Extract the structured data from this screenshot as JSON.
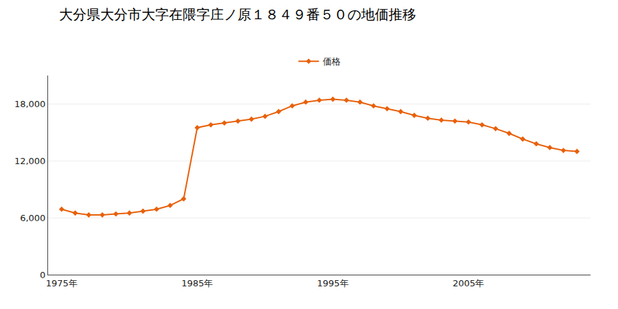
{
  "chart_data": {
    "type": "line",
    "title": "大分県大分市大字在隈字庄ノ原１８４９番５０の地価推移",
    "x": [
      1975,
      1976,
      1977,
      1978,
      1979,
      1980,
      1981,
      1982,
      1983,
      1984,
      1985,
      1986,
      1987,
      1988,
      1989,
      1990,
      1991,
      1992,
      1993,
      1994,
      1995,
      1996,
      1997,
      1998,
      1999,
      2000,
      2001,
      2002,
      2003,
      2004,
      2005,
      2006,
      2007,
      2008,
      2009,
      2010,
      2011,
      2012,
      2013
    ],
    "series": [
      {
        "name": "価格",
        "color": "#E8600A",
        "marker": "diamond",
        "values": [
          6900,
          6500,
          6300,
          6300,
          6400,
          6500,
          6700,
          6900,
          7300,
          8000,
          15500,
          15800,
          16000,
          16200,
          16400,
          16700,
          17200,
          17800,
          18200,
          18400,
          18500,
          18400,
          18200,
          17800,
          17500,
          17200,
          16800,
          16500,
          16300,
          16200,
          16100,
          15800,
          15400,
          14900,
          14300,
          13800,
          13400,
          13100,
          13000
        ]
      }
    ],
    "xlim": [
      1974,
      2014
    ],
    "xticks": [
      {
        "value": 1975,
        "label": "1975年"
      },
      {
        "value": 1985,
        "label": "1985年"
      },
      {
        "value": 1995,
        "label": "1995年"
      },
      {
        "value": 2005,
        "label": "2005年"
      }
    ],
    "ylim": [
      0,
      21000
    ],
    "yticks": [
      0,
      {
        "value": 6000,
        "label": "6,000"
      },
      {
        "value": 12000,
        "label": "12,000"
      },
      {
        "value": 18000,
        "label": "18,000"
      }
    ],
    "grid": true,
    "legend": "top"
  }
}
